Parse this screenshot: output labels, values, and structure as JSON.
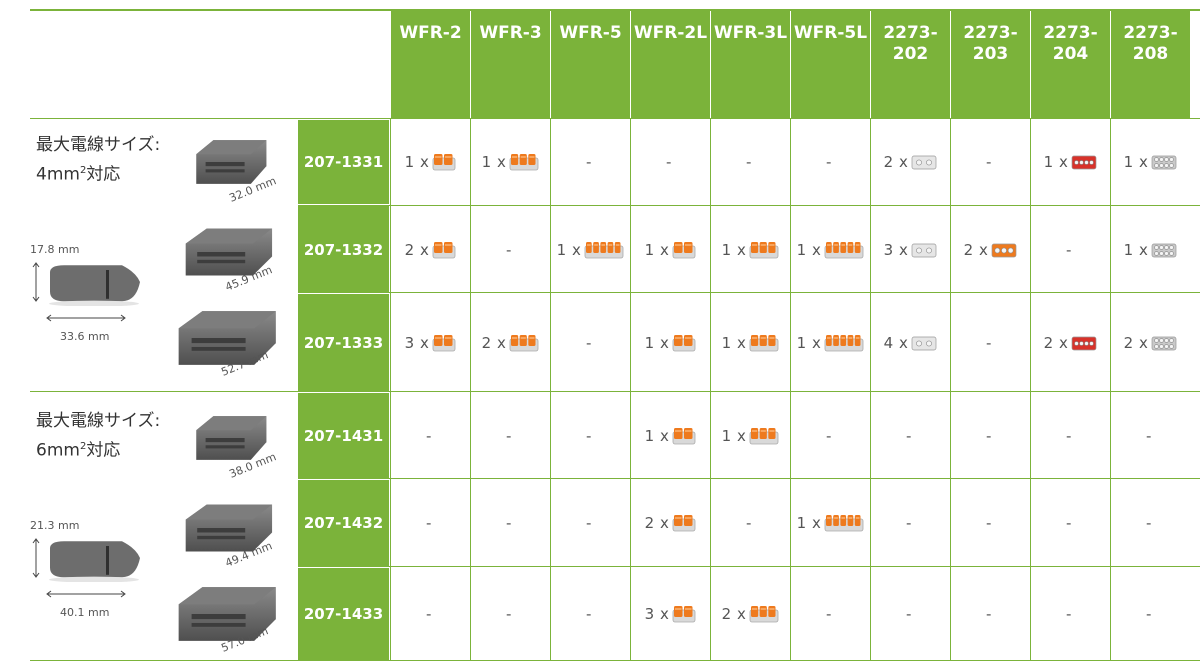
{
  "columns": [
    "WFR-2",
    "WFR-3",
    "WFR-5",
    "WFR-2L",
    "WFR-3L",
    "WFR-5L",
    "2273-\n202",
    "2273-\n203",
    "2273-\n204",
    "2273-\n208"
  ],
  "groups": [
    {
      "title_line1": "最大電線サイズ:",
      "title_line2_prefix": "4mm",
      "title_line2_sup": "2",
      "title_line2_suffix": "対応",
      "height_label": "17.8 mm",
      "length_label": "33.6 mm",
      "enclosure_dims": [
        "32.0 mm",
        "45.9 mm",
        "52.7 mm"
      ]
    },
    {
      "title_line1": "最大電線サイズ:",
      "title_line2_prefix": "6mm",
      "title_line2_sup": "2",
      "title_line2_suffix": "対応",
      "height_label": "21.3 mm",
      "length_label": "40.1 mm",
      "enclosure_dims": [
        "38.0 mm",
        "49.4 mm",
        "57.0 mm"
      ]
    }
  ],
  "rows": [
    {
      "code": "207-1331",
      "cells": [
        "1 x",
        "1 x",
        "-",
        "-",
        "-",
        "-",
        "2 x",
        "-",
        "1 x",
        "1 x"
      ]
    },
    {
      "code": "207-1332",
      "cells": [
        "2 x",
        "-",
        "1 x",
        "1 x",
        "1 x",
        "1 x",
        "3 x",
        "2 x",
        "-",
        "1 x"
      ]
    },
    {
      "code": "207-1333",
      "cells": [
        "3 x",
        "2 x",
        "-",
        "1 x",
        "1 x",
        "1 x",
        "4 x",
        "-",
        "2 x",
        "2 x"
      ]
    },
    {
      "code": "207-1431",
      "cells": [
        "-",
        "-",
        "-",
        "1 x",
        "1 x",
        "-",
        "-",
        "-",
        "-",
        "-"
      ]
    },
    {
      "code": "207-1432",
      "cells": [
        "-",
        "-",
        "-",
        "2 x",
        "-",
        "1 x",
        "-",
        "-",
        "-",
        "-"
      ]
    },
    {
      "code": "207-1433",
      "cells": [
        "-",
        "-",
        "-",
        "3 x",
        "2 x",
        "-",
        "-",
        "-",
        "-",
        "-"
      ]
    }
  ],
  "connector_colors": {
    "orange": "#ee7a1e",
    "red": "#d8322a",
    "white": "#e6e6e6",
    "gray_clear": "#c9c9c9"
  },
  "accent": "#7bb33a"
}
